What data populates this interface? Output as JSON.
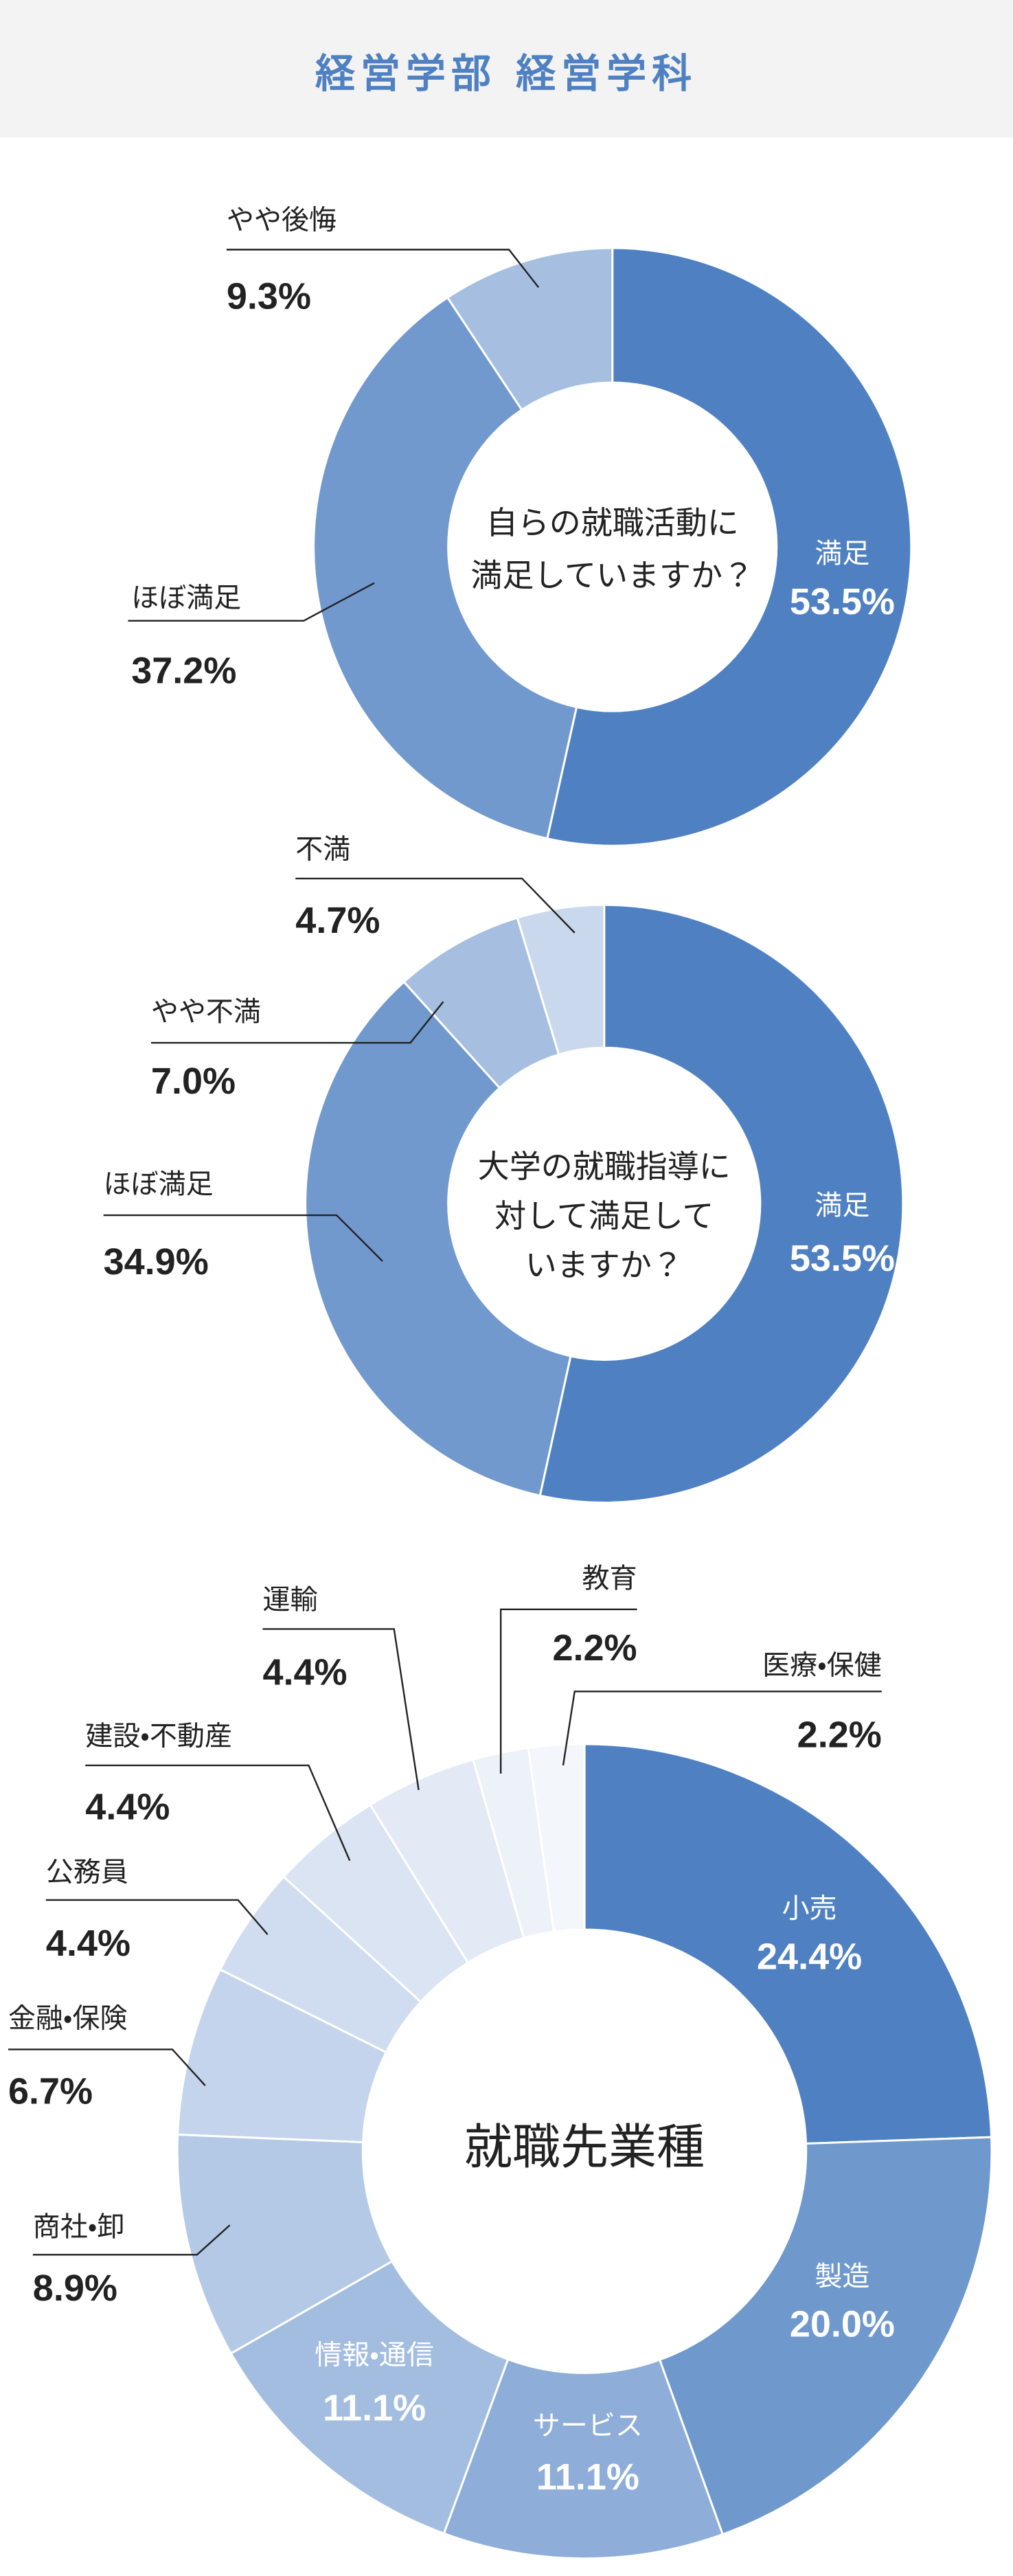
{
  "header": {
    "title": "経営学部 経営学科"
  },
  "chart_data": [
    {
      "type": "donut",
      "title": [
        "自らの就職活動に",
        "満足していますか？"
      ],
      "categories": [
        "満足",
        "ほぼ満足",
        "やや後悔"
      ],
      "values": [
        53.5,
        37.2,
        9.3
      ],
      "value_labels": [
        "53.5%",
        "37.2%",
        "9.3%"
      ],
      "colors": [
        "#4f81c2",
        "#7199ce",
        "#a6bfe0"
      ]
    },
    {
      "type": "donut",
      "title": [
        "大学の就職指導に",
        "対して満足して",
        "いますか？"
      ],
      "categories": [
        "満足",
        "ほぼ満足",
        "やや不満",
        "不満"
      ],
      "values": [
        53.5,
        34.9,
        7.0,
        4.7
      ],
      "value_labels": [
        "53.5%",
        "34.9%",
        "7.0%",
        "4.7%"
      ],
      "colors": [
        "#4f81c2",
        "#7199ce",
        "#a6bfe0",
        "#c9d8ec"
      ]
    },
    {
      "type": "donut",
      "title": [
        "就職先業種"
      ],
      "categories": [
        "小売",
        "製造",
        "サービス",
        "情報・通信",
        "商社・卸",
        "金融・保険",
        "公務員",
        "建設・不動産",
        "運輸",
        "教育",
        "医療・保健"
      ],
      "values": [
        24.4,
        20.0,
        11.1,
        11.1,
        8.9,
        6.7,
        4.4,
        4.4,
        4.4,
        2.2,
        2.2
      ],
      "value_labels": [
        "24.4%",
        "20.0%",
        "11.1%",
        "11.1%",
        "8.9%",
        "6.7%",
        "4.4%",
        "4.4%",
        "4.4%",
        "2.2%",
        "2.2%"
      ],
      "colors": [
        "#4f81c2",
        "#6f98cd",
        "#8eaed9",
        "#a3bde0",
        "#b4c9e6",
        "#c3d4ec",
        "#d0ddf0",
        "#dae4f3",
        "#e3eaf6",
        "#edf2f9",
        "#f3f6fb"
      ]
    }
  ]
}
